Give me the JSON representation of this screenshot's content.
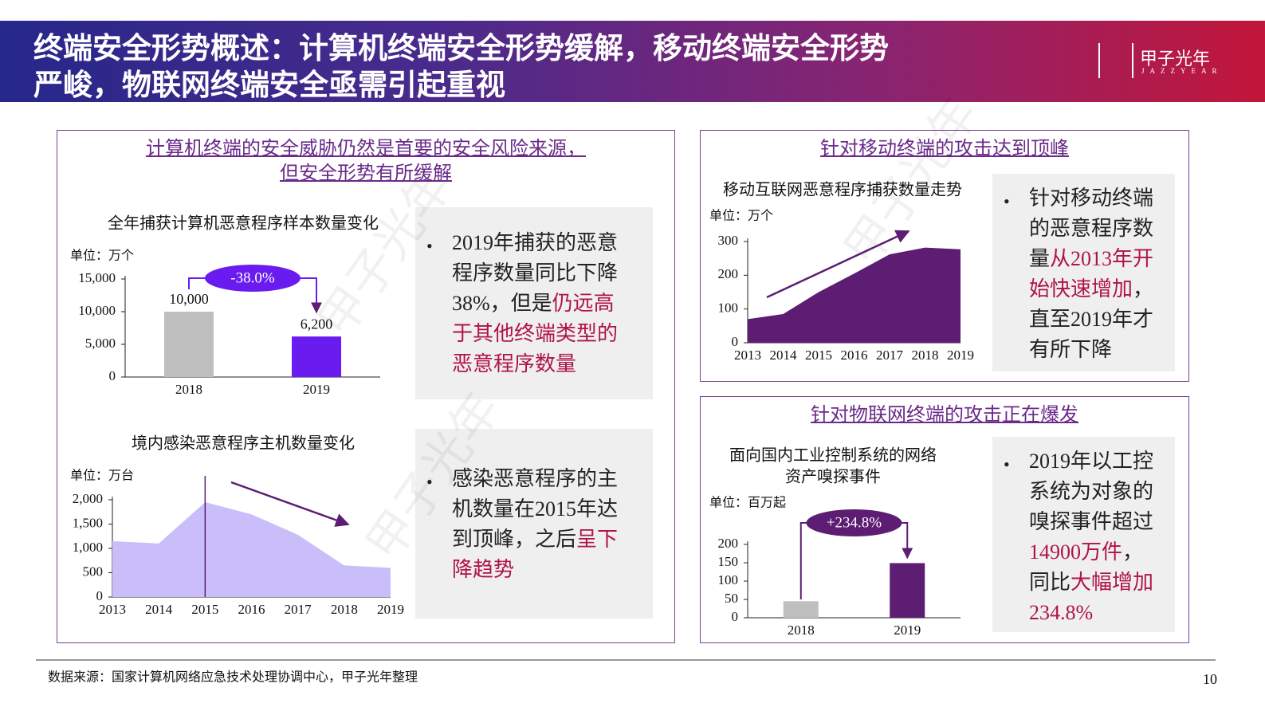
{
  "header": {
    "title_lines": [
      "终端安全形势概述：计算机终端安全形势缓解，移动终端安全形势",
      "严峻，物联网终端安全亟需引起重视"
    ],
    "logo": "甲子光年",
    "logo_sub": "JAZZYEAR"
  },
  "panels": [
    {
      "heading": [
        "计算机终端的安全威胁仍然是首要的安全风险来源，",
        "但安全形势有所缓解"
      ],
      "notes": [
        {
          "parts": [
            {
              "text": "2019年捕获的恶意程序数量同比下降38%，但是"
            },
            {
              "text": "仍远高于其他终端类型的恶意程序数量",
              "color": "#b0134a"
            }
          ]
        },
        {
          "parts": [
            {
              "text": "感染恶意程序的主机数量在2015年达到顶峰，之后"
            },
            {
              "text": "呈下降趋势",
              "color": "#b0134a"
            }
          ]
        }
      ]
    },
    {
      "heading": [
        "针对移动终端的攻击达到顶峰"
      ],
      "notes": [
        {
          "parts": [
            {
              "text": "针对移动终端的恶意程序数量"
            },
            {
              "text": "从2013年开始快速增加",
              "color": "#b0134a"
            },
            {
              "text": "，直至2019年才有所下降"
            }
          ]
        }
      ]
    },
    {
      "heading": [
        "针对物联网终端的攻击正在爆发"
      ],
      "notes": [
        {
          "parts": [
            {
              "text": "2019年以工控系统为对象的嗅探事件超过"
            },
            {
              "text": "14900万件",
              "color": "#b0134a"
            },
            {
              "text": "，同比"
            },
            {
              "text": "大幅增加234.8%",
              "color": "#b0134a"
            }
          ]
        }
      ]
    }
  ],
  "chart_data": [
    {
      "type": "bar",
      "title": [
        "全年捕获计算机恶意程序样本数量变化"
      ],
      "unit": "单位：万个",
      "categories": [
        "2018",
        "2019"
      ],
      "values": [
        10000,
        6200
      ],
      "value_labels": [
        "10,000",
        "6,200"
      ],
      "colors": [
        "#bfbfbf",
        "#6a1bf0"
      ],
      "ylim": [
        0,
        15000
      ],
      "yticks": [
        0,
        {
          "value": 5000,
          "label": "5,000"
        },
        {
          "value": 10000,
          "label": "10,000"
        },
        {
          "value": 15000,
          "label": "15,000"
        }
      ],
      "annotation": "-38.0%",
      "annotation_color": "#6a1bf0"
    },
    {
      "type": "area",
      "title": [
        "移动互联网恶意程序捕获数量走势"
      ],
      "unit": "单位：万个",
      "categories": [
        "2013",
        "2014",
        "2015",
        "2016",
        "2017",
        "2018",
        "2019"
      ],
      "values": [
        70,
        85,
        150,
        205,
        262,
        282,
        277
      ],
      "color": "#5c1d73",
      "ylim": [
        0,
        300
      ],
      "yticks": [
        0,
        100,
        200,
        300
      ]
    },
    {
      "type": "area",
      "title": [
        "境内感染恶意程序主机数量变化"
      ],
      "unit": "单位：万台",
      "categories": [
        "2013",
        "2014",
        "2015",
        "2016",
        "2017",
        "2018",
        "2019"
      ],
      "values": [
        1150,
        1100,
        1950,
        1700,
        1280,
        650,
        600
      ],
      "color": "#c9befa",
      "ylim": [
        0,
        2000
      ],
      "yticks": [
        0,
        500,
        {
          "value": 1000,
          "label": "1,000"
        },
        {
          "value": 1500,
          "label": "1,500"
        },
        {
          "value": 2000,
          "label": "2,000"
        }
      ]
    },
    {
      "type": "bar",
      "title": [
        "面向国内工业控制系统的网络",
        "资产嗅探事件"
      ],
      "unit": "单位：百万起",
      "categories": [
        "2018",
        "2019"
      ],
      "values": [
        45,
        149
      ],
      "colors": [
        "#bfbfbf",
        "#5c1d73"
      ],
      "ylim": [
        0,
        200
      ],
      "yticks": [
        0,
        50,
        100,
        150,
        200
      ],
      "annotation": "+234.8%",
      "annotation_color": "#5c1d73"
    }
  ],
  "footer": {
    "source": "数据来源：国家计算机网络应急技术处理协调中心，甲子光年整理",
    "page": "10"
  }
}
